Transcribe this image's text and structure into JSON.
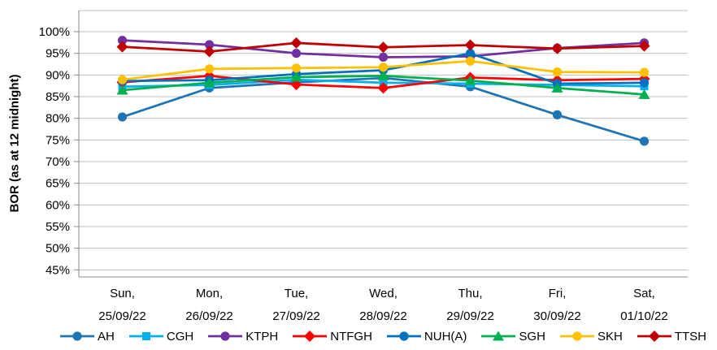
{
  "chart_data": {
    "type": "line",
    "title": "",
    "xlabel": "",
    "ylabel": "BOR (as at 12 midnight)",
    "grid": true,
    "legend_position": "bottom",
    "y_axis": {
      "tick_min": 45,
      "tick_max": 100,
      "tick_step": 5,
      "suffix": "%",
      "tick_labels": [
        "100%",
        "95%",
        "90%",
        "85%",
        "80%",
        "75%",
        "70%",
        "65%",
        "60%",
        "55%",
        "50%",
        "45%"
      ]
    },
    "x_categories": [
      {
        "line1": "Sun,",
        "line2": "25/09/22"
      },
      {
        "line1": "Mon,",
        "line2": "26/09/22"
      },
      {
        "line1": "Tue,",
        "line2": "27/09/22"
      },
      {
        "line1": "Wed,",
        "line2": "28/09/22"
      },
      {
        "line1": "Thu,",
        "line2": "29/09/22"
      },
      {
        "line1": "Fri,",
        "line2": "30/09/22"
      },
      {
        "line1": "Sat,",
        "line2": "01/10/22"
      }
    ],
    "series": [
      {
        "name": "AH",
        "color": "#1F74B4",
        "marker": "circle",
        "values": [
          80.3,
          87.0,
          88.3,
          89.3,
          87.3,
          80.8,
          74.7
        ]
      },
      {
        "name": "CGH",
        "color": "#00B0F0",
        "marker": "square",
        "values": [
          87.3,
          87.7,
          88.9,
          88.2,
          88.0,
          87.7,
          87.4
        ]
      },
      {
        "name": "KTPH",
        "color": "#7030A0",
        "marker": "circle",
        "values": [
          98.0,
          97.0,
          95.0,
          94.1,
          94.3,
          96.2,
          97.4
        ]
      },
      {
        "name": "NTFGH",
        "color": "#FF0000",
        "marker": "diamond",
        "values": [
          88.3,
          89.8,
          87.8,
          87.0,
          89.4,
          88.8,
          89.1
        ]
      },
      {
        "name": "NUH(A)",
        "color": "#0070C0",
        "marker": "circle",
        "values": [
          88.6,
          88.8,
          90.2,
          91.1,
          95.0,
          88.0,
          88.2
        ]
      },
      {
        "name": "SGH",
        "color": "#00B050",
        "marker": "triangle",
        "values": [
          86.5,
          88.2,
          89.5,
          89.8,
          88.7,
          87.0,
          85.5
        ]
      },
      {
        "name": "SKH",
        "color": "#FFC000",
        "marker": "circle",
        "values": [
          88.9,
          91.4,
          91.6,
          91.8,
          93.2,
          90.7,
          90.6
        ]
      },
      {
        "name": "TTSH",
        "color": "#C00000",
        "marker": "diamond",
        "values": [
          96.5,
          95.4,
          97.4,
          96.4,
          96.9,
          96.1,
          96.7
        ]
      }
    ],
    "style": {
      "grid_color": "#BFBFBF",
      "axis_color": "#898989",
      "text_color": "#000000",
      "background": "#FFFFFF"
    }
  }
}
